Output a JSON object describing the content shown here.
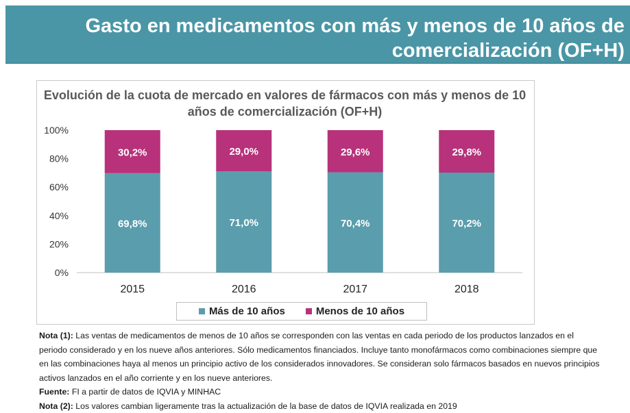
{
  "header": {
    "title": "Gasto en medicamentos con más y menos de 10 años de comercialización (OF+H)"
  },
  "chart_data": {
    "type": "bar",
    "stacked": true,
    "title": "Evolución de la cuota de mercado en valores de fármacos con más y menos de 10 años de comercialización (OF+H)",
    "categories": [
      "2015",
      "2016",
      "2017",
      "2018"
    ],
    "ylim": [
      0,
      100
    ],
    "yticks": [
      "0%",
      "20%",
      "40%",
      "60%",
      "80%",
      "100%"
    ],
    "series": [
      {
        "name": "Más de 10 años",
        "values": [
          69.8,
          71.0,
          70.4,
          70.2
        ],
        "labels": [
          "69,8%",
          "71,0%",
          "70,4%",
          "70,2%"
        ],
        "color": "#5a9dac"
      },
      {
        "name": "Menos de 10 años",
        "values": [
          30.2,
          29.0,
          29.6,
          29.8
        ],
        "labels": [
          "30,2%",
          "29,0%",
          "29,6%",
          "29,8%"
        ],
        "color": "#b7327a"
      }
    ],
    "legend_position": "bottom"
  },
  "notes": {
    "note1_label": "Nota (1):",
    "note1_text": "Las ventas de medicamentos de menos de 10 años se corresponden con las ventas en cada periodo de los productos lanzados en el periodo considerado y en los nueve años anteriores. Sólo medicamentos financiados. Incluye tanto monofármacos como combinaciones siempre que en las combinaciones haya al menos un principio activo de los considerados innovadores. Se consideran solo fármacos basados en nuevos principios activos lanzados en el año corriente y en los nueve anteriores.",
    "source_label": "Fuente:",
    "source_text": "FI a partir de datos de IQVIA y MINHAC",
    "note2_label": "Nota (2):",
    "note2_text": "Los valores cambian ligeramente tras la actualización de la base de datos de IQVIA realizada en 2019"
  }
}
